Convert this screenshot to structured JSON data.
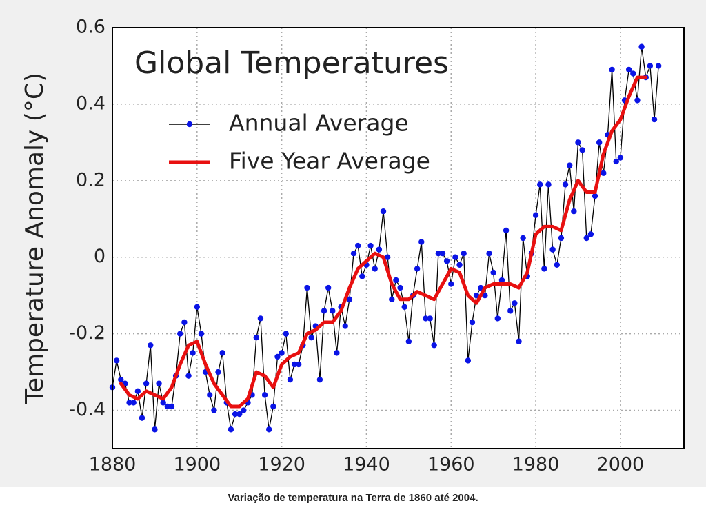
{
  "chart_data": {
    "type": "line",
    "title": "Global Temperatures",
    "ylabel": "Temperature Anomaly (°C)",
    "caption": "Variação de temperatura na Terra de 1860 até 2004.",
    "xlim": [
      1880,
      2015
    ],
    "ylim": [
      -0.5,
      0.6
    ],
    "xticks": [
      1880,
      1900,
      1920,
      1940,
      1960,
      1980,
      2000
    ],
    "yticks": [
      -0.4,
      -0.2,
      0,
      0.2,
      0.4,
      0.6
    ],
    "grid": true,
    "legend": "upper left",
    "series": [
      {
        "name": "Annual Average",
        "color": "#0a14e6",
        "line_color": "#000000",
        "markers": true,
        "x": [
          1880,
          1881,
          1882,
          1883,
          1884,
          1885,
          1886,
          1887,
          1888,
          1889,
          1890,
          1891,
          1892,
          1893,
          1894,
          1895,
          1896,
          1897,
          1898,
          1899,
          1900,
          1901,
          1902,
          1903,
          1904,
          1905,
          1906,
          1907,
          1908,
          1909,
          1910,
          1911,
          1912,
          1913,
          1914,
          1915,
          1916,
          1917,
          1918,
          1919,
          1920,
          1921,
          1922,
          1923,
          1924,
          1925,
          1926,
          1927,
          1928,
          1929,
          1930,
          1931,
          1932,
          1933,
          1934,
          1935,
          1936,
          1937,
          1938,
          1939,
          1940,
          1941,
          1942,
          1943,
          1944,
          1945,
          1946,
          1947,
          1948,
          1949,
          1950,
          1951,
          1952,
          1953,
          1954,
          1955,
          1956,
          1957,
          1958,
          1959,
          1960,
          1961,
          1962,
          1963,
          1964,
          1965,
          1966,
          1967,
          1968,
          1969,
          1970,
          1971,
          1972,
          1973,
          1974,
          1975,
          1976,
          1977,
          1978,
          1979,
          1980,
          1981,
          1982,
          1983,
          1984,
          1985,
          1986,
          1987,
          1988,
          1989,
          1990,
          1991,
          1992,
          1993,
          1994,
          1995,
          1996,
          1997,
          1998,
          1999,
          2000,
          2001,
          2002,
          2003,
          2004,
          2005,
          2006,
          2007,
          2008,
          2009
        ],
        "values": [
          -0.34,
          -0.27,
          -0.32,
          -0.33,
          -0.38,
          -0.38,
          -0.35,
          -0.42,
          -0.33,
          -0.23,
          -0.45,
          -0.33,
          -0.38,
          -0.39,
          -0.39,
          -0.31,
          -0.2,
          -0.17,
          -0.31,
          -0.25,
          -0.13,
          -0.2,
          -0.3,
          -0.36,
          -0.4,
          -0.3,
          -0.25,
          -0.38,
          -0.45,
          -0.41,
          -0.41,
          -0.4,
          -0.38,
          -0.36,
          -0.21,
          -0.16,
          -0.36,
          -0.45,
          -0.39,
          -0.26,
          -0.25,
          -0.2,
          -0.32,
          -0.28,
          -0.28,
          -0.23,
          -0.08,
          -0.21,
          -0.18,
          -0.32,
          -0.14,
          -0.08,
          -0.14,
          -0.25,
          -0.13,
          -0.18,
          -0.11,
          0.01,
          0.03,
          -0.05,
          -0.02,
          0.03,
          -0.03,
          0.02,
          0.12,
          0.0,
          -0.11,
          -0.06,
          -0.08,
          -0.13,
          -0.22,
          -0.1,
          -0.03,
          0.04,
          -0.16,
          -0.16,
          -0.23,
          0.01,
          0.01,
          -0.01,
          -0.07,
          0.0,
          -0.02,
          0.01,
          -0.27,
          -0.17,
          -0.1,
          -0.08,
          -0.1,
          0.01,
          -0.04,
          -0.16,
          -0.06,
          0.07,
          -0.14,
          -0.12,
          -0.22,
          0.05,
          -0.05,
          0.01,
          0.11,
          0.19,
          -0.03,
          0.19,
          0.02,
          -0.02,
          0.05,
          0.19,
          0.24,
          0.12,
          0.3,
          0.28,
          0.05,
          0.06,
          0.16,
          0.3,
          0.22,
          0.32,
          0.49,
          0.25,
          0.26,
          0.41,
          0.49,
          0.48,
          0.41,
          0.55,
          0.47,
          0.5,
          0.36,
          0.5
        ]
      },
      {
        "name": "Five Year Average",
        "color": "#e81010",
        "line_color": "#e81010",
        "markers": false,
        "x": [
          1882,
          1884,
          1886,
          1888,
          1890,
          1892,
          1894,
          1896,
          1898,
          1900,
          1902,
          1904,
          1906,
          1908,
          1910,
          1912,
          1914,
          1916,
          1918,
          1920,
          1922,
          1924,
          1926,
          1928,
          1930,
          1932,
          1934,
          1936,
          1938,
          1940,
          1942,
          1944,
          1946,
          1948,
          1950,
          1952,
          1954,
          1956,
          1958,
          1960,
          1962,
          1964,
          1966,
          1968,
          1970,
          1972,
          1974,
          1976,
          1978,
          1980,
          1982,
          1984,
          1986,
          1988,
          1990,
          1992,
          1994,
          1996,
          1998,
          2000,
          2002,
          2004,
          2006
        ],
        "values": [
          -0.33,
          -0.36,
          -0.37,
          -0.35,
          -0.36,
          -0.37,
          -0.34,
          -0.28,
          -0.23,
          -0.22,
          -0.28,
          -0.33,
          -0.36,
          -0.39,
          -0.39,
          -0.37,
          -0.3,
          -0.31,
          -0.34,
          -0.28,
          -0.26,
          -0.25,
          -0.2,
          -0.19,
          -0.17,
          -0.17,
          -0.14,
          -0.08,
          -0.03,
          -0.01,
          0.01,
          0.0,
          -0.07,
          -0.11,
          -0.11,
          -0.09,
          -0.1,
          -0.11,
          -0.07,
          -0.03,
          -0.04,
          -0.1,
          -0.12,
          -0.08,
          -0.07,
          -0.07,
          -0.07,
          -0.08,
          -0.04,
          0.06,
          0.08,
          0.08,
          0.07,
          0.15,
          0.2,
          0.17,
          0.17,
          0.27,
          0.33,
          0.36,
          0.42,
          0.47,
          0.47
        ]
      }
    ]
  }
}
